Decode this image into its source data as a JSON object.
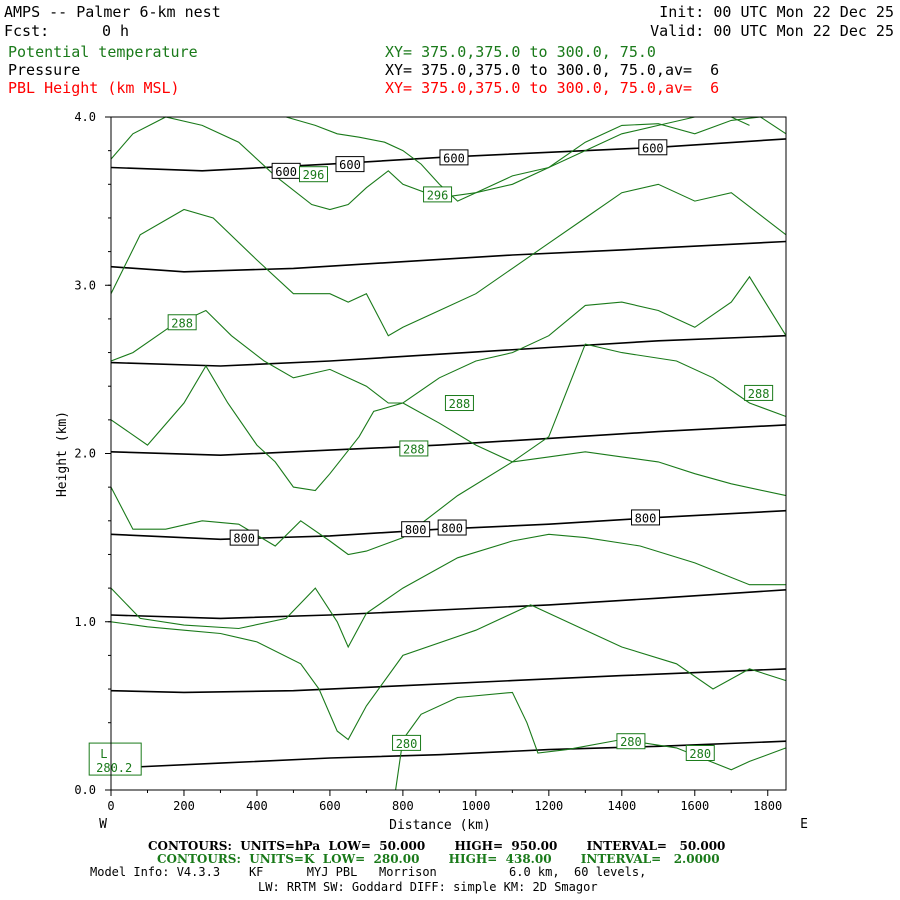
{
  "header": {
    "title": "AMPS -- Palmer 6-km nest",
    "fcst_label": "Fcst:",
    "fcst_value": "0 h",
    "init": "Init: 00 UTC Mon 22 Dec 25",
    "valid": "Valid: 00 UTC Mon 22 Dec 25"
  },
  "legend": [
    {
      "name": "Potential temperature",
      "xy": "XY= 375.0,375.0 to 300.0, 75.0",
      "color": "#1a7a1a"
    },
    {
      "name": "Pressure",
      "xy": "XY= 375.0,375.0 to 300.0, 75.0,av=  6",
      "color": "#000000"
    },
    {
      "name": "PBL Height (km MSL)",
      "xy": "XY= 375.0,375.0 to 300.0, 75.0,av=  6",
      "color": "#ff0000"
    }
  ],
  "footer": {
    "line1": "CONTOURS:  UNITS=hPa  LOW=  50.000       HIGH=  950.00       INTERVAL=   50.000",
    "line2": "CONTOURS:  UNITS=K  LOW=  280.00       HIGH=  438.00       INTERVAL=   2.0000",
    "line3": "Model Info: V4.3.3    KF      MYJ PBL   Morrison          6.0 km,  60 levels,",
    "line4": "LW: RRTM SW: Goddard DIFF: simple KM: 2D Smagor"
  },
  "chart_data": {
    "type": "line",
    "xlabel": "Distance (km)",
    "ylabel": "Height (km)",
    "xlim": [
      0,
      1850
    ],
    "ylim": [
      0,
      4.0
    ],
    "xticks": [
      0,
      200,
      400,
      600,
      800,
      1000,
      1200,
      1400,
      1600,
      1800
    ],
    "yticks": [
      0.0,
      1.0,
      2.0,
      3.0,
      4.0
    ],
    "ytick_labels": [
      "0.0",
      "1.0",
      "2.0",
      "3.0",
      "4.0"
    ],
    "left_end_label": "W",
    "right_end_label": "E",
    "pressure_series": [
      {
        "name": "pressure_950",
        "x": [
          0,
          300,
          600,
          900,
          1200,
          1500,
          1850
        ],
        "y": [
          0.13,
          0.16,
          0.19,
          0.21,
          0.24,
          0.26,
          0.29
        ]
      },
      {
        "name": "pressure_900",
        "x": [
          0,
          200,
          500,
          800,
          1100,
          1400,
          1850
        ],
        "y": [
          0.59,
          0.58,
          0.59,
          0.62,
          0.65,
          0.68,
          0.72
        ]
      },
      {
        "name": "pressure_850",
        "x": [
          0,
          300,
          600,
          900,
          1200,
          1500,
          1850
        ],
        "y": [
          1.04,
          1.02,
          1.04,
          1.07,
          1.1,
          1.14,
          1.19
        ]
      },
      {
        "name": "pressure_800",
        "x": [
          0,
          300,
          600,
          900,
          1200,
          1500,
          1850
        ],
        "y": [
          1.52,
          1.49,
          1.51,
          1.55,
          1.58,
          1.62,
          1.66
        ]
      },
      {
        "name": "pressure_750",
        "x": [
          0,
          300,
          600,
          900,
          1200,
          1500,
          1850
        ],
        "y": [
          2.01,
          1.99,
          2.02,
          2.05,
          2.09,
          2.13,
          2.17
        ]
      },
      {
        "name": "pressure_700",
        "x": [
          0,
          300,
          600,
          900,
          1200,
          1500,
          1850
        ],
        "y": [
          2.54,
          2.52,
          2.55,
          2.59,
          2.63,
          2.67,
          2.7
        ]
      },
      {
        "name": "pressure_650",
        "x": [
          0,
          200,
          500,
          800,
          1100,
          1400,
          1850
        ],
        "y": [
          3.11,
          3.08,
          3.1,
          3.14,
          3.18,
          3.21,
          3.26
        ]
      },
      {
        "name": "pressure_600",
        "x": [
          0,
          250,
          600,
          900,
          1200,
          1500,
          1850
        ],
        "y": [
          3.7,
          3.68,
          3.72,
          3.76,
          3.79,
          3.82,
          3.87
        ]
      }
    ],
    "theta_series": [
      {
        "name": "theta_280",
        "x": [
          780,
          800,
          850,
          950,
          1100,
          1140,
          1170,
          1250,
          1400,
          1550,
          1700,
          1750,
          1850
        ],
        "y": [
          0.0,
          0.3,
          0.45,
          0.55,
          0.58,
          0.4,
          0.22,
          0.24,
          0.3,
          0.25,
          0.12,
          0.17,
          0.25
        ]
      },
      {
        "name": "theta_282",
        "x": [
          0,
          100,
          200,
          300,
          400,
          520,
          570,
          620,
          650,
          700,
          800,
          1000,
          1150,
          1250,
          1400,
          1550,
          1650,
          1750,
          1850
        ],
        "y": [
          1.0,
          0.97,
          0.95,
          0.93,
          0.88,
          0.75,
          0.6,
          0.35,
          0.3,
          0.5,
          0.8,
          0.95,
          1.1,
          1.0,
          0.85,
          0.75,
          0.6,
          0.72,
          0.65
        ]
      },
      {
        "name": "theta_284",
        "x": [
          0,
          80,
          200,
          350,
          480,
          560,
          620,
          650,
          700,
          800,
          950,
          1100,
          1200,
          1300,
          1450,
          1600,
          1750,
          1850
        ],
        "y": [
          1.2,
          1.02,
          0.98,
          0.96,
          1.02,
          1.2,
          1.0,
          0.85,
          1.05,
          1.2,
          1.38,
          1.48,
          1.52,
          1.5,
          1.45,
          1.35,
          1.22,
          1.22
        ]
      },
      {
        "name": "theta_286",
        "x": [
          0,
          60,
          150,
          250,
          350,
          450,
          520,
          600,
          650,
          700,
          800,
          950,
          1100,
          1200,
          1300,
          1400,
          1500,
          1600,
          1700,
          1850
        ],
        "y": [
          1.8,
          1.55,
          1.55,
          1.6,
          1.58,
          1.45,
          1.6,
          1.48,
          1.4,
          1.42,
          1.5,
          1.75,
          1.95,
          1.98,
          2.01,
          1.98,
          1.95,
          1.88,
          1.82,
          1.75
        ]
      },
      {
        "name": "theta_288",
        "x": [
          0,
          100,
          200,
          260,
          320,
          400,
          450,
          500,
          560,
          600,
          680,
          720,
          800,
          900,
          1000,
          1100,
          1200,
          1300,
          1400,
          1550,
          1650,
          1750,
          1850
        ],
        "y": [
          2.2,
          2.05,
          2.3,
          2.52,
          2.3,
          2.05,
          1.95,
          1.8,
          1.78,
          1.88,
          2.1,
          2.25,
          2.3,
          2.18,
          2.05,
          1.95,
          2.1,
          2.65,
          2.6,
          2.55,
          2.45,
          2.3,
          2.22
        ]
      },
      {
        "name": "theta_290",
        "x": [
          0,
          60,
          160,
          260,
          330,
          420,
          500,
          600,
          700,
          760,
          800,
          900,
          1000,
          1100,
          1200,
          1300,
          1400,
          1500,
          1600,
          1700,
          1750,
          1850
        ],
        "y": [
          2.55,
          2.6,
          2.75,
          2.85,
          2.7,
          2.55,
          2.45,
          2.5,
          2.4,
          2.3,
          2.3,
          2.45,
          2.55,
          2.6,
          2.7,
          2.88,
          2.9,
          2.85,
          2.75,
          2.9,
          3.05,
          2.7
        ]
      },
      {
        "name": "theta_292",
        "x": [
          0,
          80,
          200,
          280,
          400,
          500,
          600,
          650,
          700,
          760,
          800,
          900,
          1000,
          1100,
          1200,
          1300,
          1400,
          1500,
          1600,
          1700,
          1850
        ],
        "y": [
          2.95,
          3.3,
          3.45,
          3.4,
          3.15,
          2.95,
          2.95,
          2.9,
          2.95,
          2.7,
          2.75,
          2.85,
          2.95,
          3.1,
          3.25,
          3.4,
          3.55,
          3.6,
          3.5,
          3.55,
          3.3
        ]
      },
      {
        "name": "theta_294",
        "x": [
          0,
          60,
          150,
          250,
          350,
          450,
          550,
          600,
          650,
          700,
          760,
          800,
          900,
          1000,
          1100,
          1200,
          1300,
          1400,
          1500,
          1600,
          1700,
          1780,
          1850
        ],
        "y": [
          3.75,
          3.9,
          4.0,
          3.95,
          3.85,
          3.65,
          3.48,
          3.45,
          3.48,
          3.58,
          3.68,
          3.6,
          3.52,
          3.55,
          3.6,
          3.7,
          3.85,
          3.95,
          3.96,
          3.9,
          3.98,
          4.0,
          3.9
        ]
      },
      {
        "name": "theta_296",
        "x": [
          480,
          560,
          620,
          680,
          750,
          800,
          850,
          900,
          950,
          1000,
          1100,
          1200,
          1300,
          1400,
          1500,
          1600,
          1700,
          1750
        ],
        "y": [
          4.0,
          3.95,
          3.9,
          3.88,
          3.85,
          3.8,
          3.72,
          3.6,
          3.5,
          3.55,
          3.65,
          3.7,
          3.8,
          3.9,
          3.95,
          4.0,
          4.0,
          3.95
        ]
      }
    ],
    "pressure_labels": [
      {
        "text": "600",
        "x": 480,
        "y": 3.68
      },
      {
        "text": "600",
        "x": 655,
        "y": 3.72
      },
      {
        "text": "600",
        "x": 940,
        "y": 3.76
      },
      {
        "text": "600",
        "x": 1485,
        "y": 3.82
      },
      {
        "text": "800",
        "x": 365,
        "y": 1.5
      },
      {
        "text": "800",
        "x": 835,
        "y": 1.55
      },
      {
        "text": "800",
        "x": 935,
        "y": 1.56
      },
      {
        "text": "800",
        "x": 1465,
        "y": 1.62
      }
    ],
    "theta_labels": [
      {
        "text": "296",
        "x": 555,
        "y": 3.66
      },
      {
        "text": "296",
        "x": 895,
        "y": 3.54
      },
      {
        "text": "288",
        "x": 195,
        "y": 2.78
      },
      {
        "text": "288",
        "x": 955,
        "y": 2.3
      },
      {
        "text": "288",
        "x": 830,
        "y": 2.03
      },
      {
        "text": "288",
        "x": 1775,
        "y": 2.36
      },
      {
        "text": "280",
        "x": 810,
        "y": 0.28
      },
      {
        "text": "280",
        "x": 1425,
        "y": 0.29
      },
      {
        "text": "280",
        "x": 1615,
        "y": 0.22
      }
    ],
    "low_marker": {
      "symbol": "L",
      "value": "280.2",
      "x": 80,
      "y": 0.16
    }
  }
}
